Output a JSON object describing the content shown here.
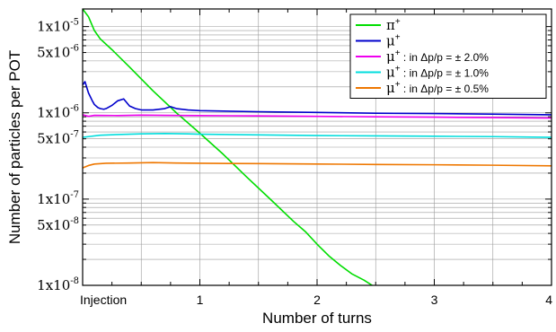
{
  "chart_data": {
    "type": "line",
    "xlabel": "Number of turns",
    "ylabel": "Number of particles per POT",
    "xlim": [
      0,
      4
    ],
    "ylim": [
      1e-08,
      1.6e-05
    ],
    "yscale": "log",
    "grid": true,
    "legend_position": "top-right",
    "x_ticks": [
      {
        "value": 0,
        "label": "Injection"
      },
      {
        "value": 1,
        "label": "1"
      },
      {
        "value": 2,
        "label": "2"
      },
      {
        "value": 3,
        "label": "3"
      },
      {
        "value": 4,
        "label": "4"
      }
    ],
    "y_ticks": [
      {
        "value": 1e-05,
        "label": "1x10-5",
        "mantissa": "1x10",
        "exp": "-5"
      },
      {
        "value": 5e-06,
        "label": "5x10-6",
        "mantissa": "5x10",
        "exp": "-6"
      },
      {
        "value": 1e-06,
        "label": "1x10-6",
        "mantissa": "1x10",
        "exp": "-6"
      },
      {
        "value": 5e-07,
        "label": "5x10-7",
        "mantissa": "5x10",
        "exp": "-7"
      },
      {
        "value": 1e-07,
        "label": "1x10-7",
        "mantissa": "1x10",
        "exp": "-7"
      },
      {
        "value": 5e-08,
        "label": "5x10-8",
        "mantissa": "5x10",
        "exp": "-8"
      },
      {
        "value": 1e-08,
        "label": "1x10-8",
        "mantissa": "1x10",
        "exp": "-8"
      }
    ],
    "series": [
      {
        "name": "π+",
        "base": "π",
        "sup": "+",
        "suffix": "",
        "color": "#00dd00",
        "x": [
          0,
          0.05,
          0.1,
          0.15,
          0.25,
          0.4,
          0.6,
          0.8,
          1.0,
          1.2,
          1.4,
          1.6,
          1.8,
          1.9,
          2.0,
          2.1,
          2.2,
          2.3,
          2.4,
          2.47
        ],
        "y": [
          1.6e-05,
          1.3e-05,
          9e-06,
          7.2e-06,
          5.4e-06,
          3.4e-06,
          1.8e-06,
          1e-06,
          5.8e-07,
          3.3e-07,
          1.8e-07,
          1e-07,
          5.5e-08,
          4.2e-08,
          3e-08,
          2.2e-08,
          1.7e-08,
          1.35e-08,
          1.15e-08,
          1e-08
        ]
      },
      {
        "name": "μ+",
        "base": "μ",
        "sup": "+",
        "suffix": "",
        "color": "#0000cc",
        "x": [
          0,
          0.02,
          0.05,
          0.08,
          0.1,
          0.13,
          0.15,
          0.18,
          0.2,
          0.25,
          0.3,
          0.35,
          0.4,
          0.45,
          0.5,
          0.6,
          0.7,
          0.75,
          0.8,
          0.9,
          1.0,
          1.5,
          2.0,
          2.5,
          3.0,
          3.5,
          4.0
        ],
        "y": [
          2.1e-06,
          2.3e-06,
          1.7e-06,
          1.4e-06,
          1.25e-06,
          1.15e-06,
          1.12e-06,
          1.1e-06,
          1.12e-06,
          1.22e-06,
          1.38e-06,
          1.45e-06,
          1.2e-06,
          1.12e-06,
          1.08e-06,
          1.08e-06,
          1.12e-06,
          1.18e-06,
          1.12e-06,
          1.08e-06,
          1.06e-06,
          1.03e-06,
          1.01e-06,
          9.9e-07,
          9.8e-07,
          9.65e-07,
          9.5e-07
        ]
      },
      {
        "name": "μ+ : in Δp/p = ± 2.0%",
        "base": "μ",
        "sup": "+",
        "suffix": " : in Δp/p = ± 2.0%",
        "color": "#ee00ee",
        "x": [
          0,
          0.05,
          0.1,
          0.3,
          0.5,
          0.7,
          1.0,
          1.5,
          2.0,
          2.5,
          3.0,
          3.5,
          4.0
        ],
        "y": [
          9.5e-07,
          9.1e-07,
          9.35e-07,
          9.3e-07,
          9.4e-07,
          9.35e-07,
          9.3e-07,
          9.2e-07,
          9.1e-07,
          9e-07,
          8.9e-07,
          8.8e-07,
          8.7e-07
        ]
      },
      {
        "name": "μ+ : in Δp/p = ± 1.0%",
        "base": "μ",
        "sup": "+",
        "suffix": " : in Δp/p = ± 1.0%",
        "color": "#00dddd",
        "x": [
          0,
          0.05,
          0.15,
          0.3,
          0.5,
          0.7,
          0.9,
          1.0,
          1.5,
          2.0,
          2.5,
          3.0,
          3.5,
          4.0
        ],
        "y": [
          5.2e-07,
          5.3e-07,
          5.5e-07,
          5.6e-07,
          5.7e-07,
          5.75e-07,
          5.7e-07,
          5.65e-07,
          5.55e-07,
          5.45e-07,
          5.4e-07,
          5.35e-07,
          5.3e-07,
          5.2e-07
        ]
      },
      {
        "name": "μ+ : in Δp/p = ± 0.5%",
        "base": "μ",
        "sup": "+",
        "suffix": " : in Δp/p = ± 0.5%",
        "color": "#ee7700",
        "x": [
          0,
          0.05,
          0.1,
          0.2,
          0.4,
          0.6,
          0.8,
          1.0,
          1.5,
          2.0,
          2.5,
          3.0,
          3.5,
          4.0
        ],
        "y": [
          2.3e-07,
          2.45e-07,
          2.55e-07,
          2.6e-07,
          2.62e-07,
          2.65e-07,
          2.62e-07,
          2.6e-07,
          2.58e-07,
          2.55e-07,
          2.52e-07,
          2.5e-07,
          2.47e-07,
          2.43e-07
        ]
      }
    ]
  }
}
